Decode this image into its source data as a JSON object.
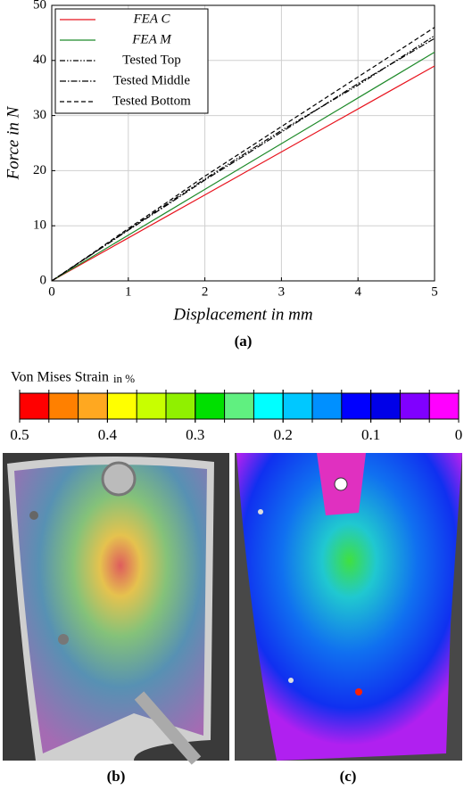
{
  "chart_data": [
    {
      "type": "line",
      "xlabel": "Displacement in mm",
      "ylabel": "Force in N",
      "caption": "(a)",
      "xlim": [
        0,
        5
      ],
      "ylim": [
        0,
        50
      ],
      "xticks": [
        0,
        1,
        2,
        3,
        4,
        5
      ],
      "yticks": [
        0,
        10,
        20,
        30,
        40,
        50
      ],
      "grid": true,
      "legend": "upper left",
      "x": [
        0,
        0.5,
        1,
        1.5,
        2,
        2.5,
        3,
        3.5,
        4,
        4.5,
        5
      ],
      "series": [
        {
          "name": "FEA C",
          "color": "#e8141e",
          "dash": "none",
          "values": [
            0,
            3.9,
            7.8,
            11.7,
            15.6,
            19.5,
            23.4,
            27.3,
            31.2,
            35.1,
            39
          ]
        },
        {
          "name": "FEA M",
          "color": "#1f8a2a",
          "dash": "none",
          "values": [
            0,
            4.15,
            8.3,
            12.45,
            16.6,
            20.75,
            24.9,
            29.05,
            33.2,
            37.35,
            41.5
          ]
        },
        {
          "name": "Tested Top",
          "color": "#000000",
          "dash": "6,2,1.5,2,1.5,2",
          "values": [
            0,
            4.6,
            9.3,
            13.9,
            18.5,
            22.9,
            27.3,
            31.4,
            35.5,
            40,
            44.5
          ]
        },
        {
          "name": "Tested Middle",
          "color": "#000000",
          "dash": "7,2,1.5,2",
          "values": [
            0,
            4.6,
            9.2,
            13.7,
            18.3,
            22.6,
            27,
            31.4,
            35.8,
            39.9,
            44
          ]
        },
        {
          "name": "Tested Bottom",
          "color": "#000000",
          "dash": "5,3",
          "values": [
            0,
            4.7,
            9.5,
            14.2,
            19,
            23.5,
            28,
            32.5,
            37,
            41.5,
            46
          ]
        }
      ]
    },
    {
      "type": "colorbar",
      "title": "Von Mises Strain",
      "unit": "in %",
      "clim": [
        0.5,
        0
      ],
      "ticks": [
        0.5,
        0.4,
        0.3,
        0.2,
        0.1,
        0
      ],
      "colors": [
        "#ff0000",
        "#ff8000",
        "#ffa820",
        "#ffff00",
        "#c8ff00",
        "#90f000",
        "#00e000",
        "#60f080",
        "#00ffff",
        "#00c8ff",
        "#0090ff",
        "#0000ff",
        "#0000e8",
        "#8000ff",
        "#ff00ff"
      ]
    },
    {
      "type": "image",
      "caption": "(b)"
    },
    {
      "type": "image",
      "caption": "(c)"
    }
  ]
}
